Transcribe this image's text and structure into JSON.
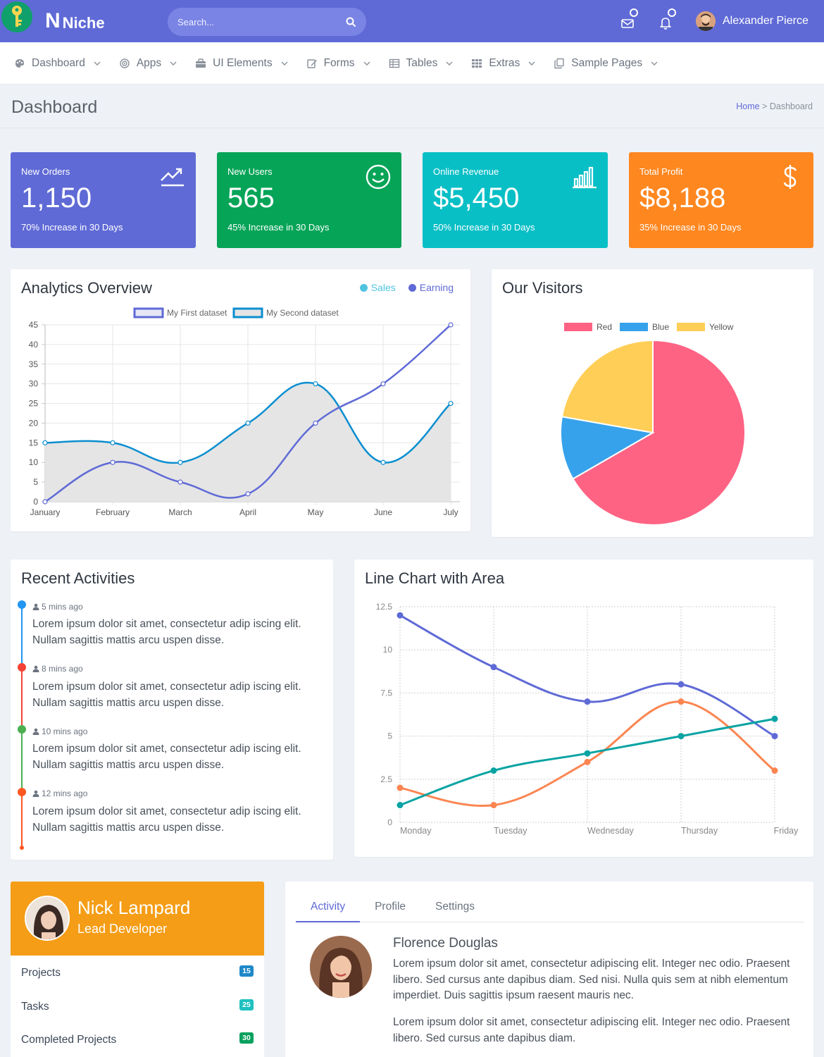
{
  "topbar": {
    "brand_letter": "N",
    "brand_name": "Niche",
    "search_placeholder": "Search...",
    "user_name": "Alexander Pierce",
    "color": "#5f6ad6"
  },
  "nav": {
    "items": [
      {
        "label": "Dashboard",
        "icon": "palette-icon"
      },
      {
        "label": "Apps",
        "icon": "target-icon"
      },
      {
        "label": "UI Elements",
        "icon": "briefcase-icon"
      },
      {
        "label": "Forms",
        "icon": "edit-icon"
      },
      {
        "label": "Tables",
        "icon": "table-icon"
      },
      {
        "label": "Extras",
        "icon": "grid-icon"
      },
      {
        "label": "Sample Pages",
        "icon": "copy-icon"
      }
    ]
  },
  "page": {
    "title": "Dashboard",
    "breadcrumb_home": "Home",
    "breadcrumb_sep": ">",
    "breadcrumb_current": "Dashboard"
  },
  "stats": [
    {
      "label": "New Orders",
      "value": "1,150",
      "sub": "70% Increase in 30 Days",
      "color": "#5f6ad6",
      "icon": "trending-up-icon"
    },
    {
      "label": "New Users",
      "value": "565",
      "sub": "45% Increase in 30 Days",
      "color": "#06a457",
      "icon": "smile-icon"
    },
    {
      "label": "Online Revenue",
      "value": "$5,450",
      "sub": "50% Increase in 30 Days",
      "color": "#09bfc6",
      "icon": "bar-chart-icon"
    },
    {
      "label": "Total Profit",
      "value": "$8,188",
      "sub": "35% Increase in 30 Days",
      "color": "#fe8720",
      "icon": "dollar-icon"
    }
  ],
  "analytics": {
    "title": "Analytics Overview",
    "legend_sales": "Sales",
    "legend_earning": "Earning",
    "sales_color": "#4fc3e0",
    "earning_color": "#5f6ad6"
  },
  "visitors": {
    "title": "Our Visitors"
  },
  "activities": {
    "title": "Recent Activities",
    "items": [
      {
        "time": "5 mins ago",
        "text": "Lorem ipsum dolor sit amet, consectetur adip iscing elit. Nullam sagittis mattis arcu uspen disse.",
        "color": "#2196f3"
      },
      {
        "time": "8 mins ago",
        "text": "Lorem ipsum dolor sit amet, consectetur adip iscing elit. Nullam sagittis mattis arcu uspen disse.",
        "color": "#f44336"
      },
      {
        "time": "10 mins ago",
        "text": "Lorem ipsum dolor sit amet, consectetur adip iscing elit. Nullam sagittis mattis arcu uspen disse.",
        "color": "#4caf50"
      },
      {
        "time": "12 mins ago",
        "text": "Lorem ipsum dolor sit amet, consectetur adip iscing elit. Nullam sagittis mattis arcu uspen disse.",
        "color": "#ff5722"
      }
    ]
  },
  "linearea": {
    "title": "Line Chart with Area"
  },
  "profile": {
    "name": "Nick Lampard",
    "role": "Lead Developer",
    "rows": [
      {
        "label": "Projects",
        "count": "15",
        "color": "#1e88c8"
      },
      {
        "label": "Tasks",
        "count": "25",
        "color": "#1ec0c0"
      },
      {
        "label": "Completed Projects",
        "count": "30",
        "color": "#0aa05e"
      }
    ]
  },
  "tabs": {
    "items": [
      "Activity",
      "Profile",
      "Settings"
    ],
    "active": 0,
    "post_name": "Florence Douglas",
    "post_p1": "Lorem ipsum dolor sit amet, consectetur adipiscing elit. Integer nec odio. Praesent libero. Sed cursus ante dapibus diam. Sed nisi. Nulla quis sem at nibh elementum imperdiet. Duis sagittis ipsum raesent mauris nec.",
    "post_p2": "Lorem ipsum dolor sit amet, consectetur adipiscing elit. Integer nec odio. Praesent libero. Sed cursus ante dapibus diam."
  },
  "chart_data": [
    {
      "type": "line",
      "categories": [
        "January",
        "February",
        "March",
        "April",
        "May",
        "June",
        "July"
      ],
      "series": [
        {
          "name": "My First dataset",
          "values": [
            0,
            10,
            5,
            2,
            20,
            30,
            45
          ],
          "color": "#5f6ad6",
          "fill": false
        },
        {
          "name": "My Second dataset",
          "values": [
            15,
            15,
            10,
            20,
            30,
            10,
            25
          ],
          "color": "#0b8ed0",
          "fill": true,
          "fill_color": "#e5e5e5"
        }
      ],
      "yticks": [
        0,
        5,
        10,
        15,
        20,
        25,
        30,
        35,
        40,
        45
      ],
      "ylim": [
        0,
        45
      ],
      "grid": true,
      "legend": "top"
    },
    {
      "type": "pie",
      "categories": [
        "Red",
        "Blue",
        "Yellow"
      ],
      "values": [
        300,
        50,
        100
      ],
      "colors": [
        "#ff6384",
        "#36a2eb",
        "#ffce56"
      ],
      "legend": "top"
    },
    {
      "type": "line",
      "categories": [
        "Monday",
        "Tuesday",
        "Wednesday",
        "Thursday",
        "Friday"
      ],
      "series": [
        {
          "values": [
            12,
            9,
            7,
            8,
            5
          ],
          "color": "#5f6ad6"
        },
        {
          "values": [
            2,
            1,
            3.5,
            7,
            3
          ],
          "color": "#fb8551"
        },
        {
          "values": [
            1,
            3,
            4,
            5,
            6
          ],
          "color": "#0aa3a3"
        }
      ],
      "yticks": [
        "0",
        "2.5",
        "5",
        "7.5",
        "10",
        "12.5"
      ],
      "ylim": [
        0,
        12.5
      ],
      "grid": true
    }
  ]
}
